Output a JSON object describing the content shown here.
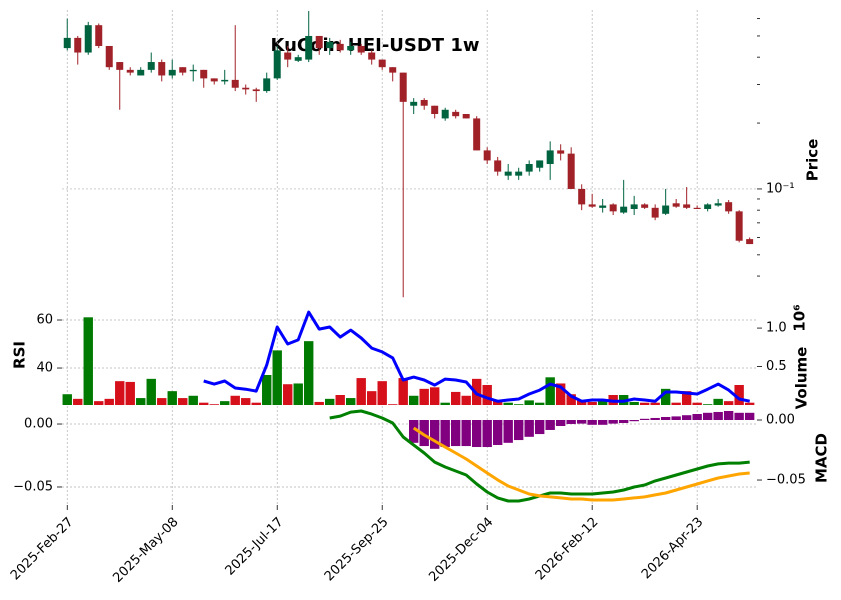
{
  "chart_data": [
    {
      "type": "candlestick",
      "title": "KuCoin HEI-USDT 1w",
      "ylabel": "Price",
      "yscale": "log",
      "grid": true,
      "ylim": [
        0.0295,
        0.657
      ],
      "yticks": [
        {
          "value": 0.1,
          "label": "10⁻¹"
        }
      ],
      "yminorticks": [
        0.04,
        0.05,
        0.06,
        0.07,
        0.08,
        0.09,
        0.2,
        0.3,
        0.4,
        0.5,
        0.6
      ],
      "up_color": "#006340",
      "down_color": "#a02128",
      "open": [
        0.44,
        0.49,
        0.42,
        0.56,
        0.45,
        0.38,
        0.35,
        0.33,
        0.35,
        0.38,
        0.33,
        0.36,
        0.345,
        0.35,
        0.32,
        0.31,
        0.315,
        0.29,
        0.285,
        0.28,
        0.32,
        0.42,
        0.385,
        0.39,
        0.5,
        0.44,
        0.46,
        0.43,
        0.45,
        0.42,
        0.39,
        0.36,
        0.34,
        0.24,
        0.255,
        0.24,
        0.21,
        0.225,
        0.22,
        0.21,
        0.15,
        0.135,
        0.115,
        0.115,
        0.12,
        0.125,
        0.13,
        0.15,
        0.145,
        0.1,
        0.085,
        0.082,
        0.085,
        0.078,
        0.081,
        0.085,
        0.082,
        0.077,
        0.086,
        0.085,
        0.082,
        0.081,
        0.084,
        0.087,
        0.079,
        0.059
      ],
      "high": [
        0.6,
        0.5,
        0.58,
        0.57,
        0.45,
        0.38,
        0.36,
        0.36,
        0.42,
        0.39,
        0.39,
        0.36,
        0.37,
        0.35,
        0.32,
        0.35,
        0.56,
        0.3,
        0.29,
        0.34,
        0.45,
        0.45,
        0.41,
        0.65,
        0.5,
        0.49,
        0.48,
        0.47,
        0.46,
        0.43,
        0.39,
        0.36,
        0.34,
        0.26,
        0.26,
        0.24,
        0.235,
        0.23,
        0.22,
        0.215,
        0.155,
        0.14,
        0.13,
        0.125,
        0.135,
        0.135,
        0.165,
        0.16,
        0.155,
        0.105,
        0.095,
        0.09,
        0.086,
        0.11,
        0.093,
        0.086,
        0.085,
        0.1,
        0.09,
        0.102,
        0.084,
        0.086,
        0.09,
        0.089,
        0.08,
        0.06
      ],
      "low": [
        0.43,
        0.37,
        0.41,
        0.44,
        0.35,
        0.23,
        0.33,
        0.33,
        0.34,
        0.31,
        0.32,
        0.33,
        0.31,
        0.29,
        0.3,
        0.3,
        0.28,
        0.27,
        0.25,
        0.275,
        0.315,
        0.36,
        0.38,
        0.38,
        0.41,
        0.41,
        0.42,
        0.41,
        0.41,
        0.37,
        0.35,
        0.31,
        0.032,
        0.22,
        0.23,
        0.21,
        0.205,
        0.21,
        0.21,
        0.15,
        0.13,
        0.115,
        0.11,
        0.11,
        0.115,
        0.12,
        0.11,
        0.135,
        0.1,
        0.08,
        0.082,
        0.078,
        0.076,
        0.077,
        0.076,
        0.081,
        0.072,
        0.076,
        0.082,
        0.081,
        0.081,
        0.079,
        0.083,
        0.077,
        0.057,
        0.056
      ],
      "close": [
        0.49,
        0.42,
        0.56,
        0.45,
        0.36,
        0.35,
        0.34,
        0.35,
        0.38,
        0.33,
        0.35,
        0.34,
        0.35,
        0.32,
        0.31,
        0.315,
        0.29,
        0.285,
        0.28,
        0.32,
        0.43,
        0.39,
        0.4,
        0.5,
        0.44,
        0.47,
        0.43,
        0.45,
        0.42,
        0.39,
        0.36,
        0.34,
        0.25,
        0.25,
        0.24,
        0.22,
        0.23,
        0.215,
        0.21,
        0.15,
        0.135,
        0.12,
        0.12,
        0.12,
        0.13,
        0.135,
        0.15,
        0.145,
        0.1,
        0.085,
        0.083,
        0.084,
        0.079,
        0.083,
        0.085,
        0.082,
        0.074,
        0.084,
        0.083,
        0.082,
        0.081,
        0.085,
        0.086,
        0.079,
        0.058,
        0.056
      ]
    },
    {
      "type": "combo",
      "ylabel": "RSI",
      "y2label": "Volume",
      "y2_offset_label": "10⁶",
      "grid": true,
      "ylim": [
        24.6,
        66.25
      ],
      "yticks": [
        40,
        60
      ],
      "y2lim": [
        0,
        1.3
      ],
      "y2ticks": [
        {
          "value": 0.5,
          "label": "0.5"
        },
        {
          "value": 1,
          "label": "1.0"
        }
      ],
      "series": [
        {
          "kind": "bar",
          "axis": "y2",
          "up_color": "#007a00",
          "down_color": "#d5101b",
          "values": [
            0.14,
            0.08,
            1.14,
            0.05,
            0.08,
            0.31,
            0.3,
            0.09,
            0.34,
            0.09,
            0.18,
            0.09,
            0.12,
            0.03,
            0.01,
            0.05,
            0.12,
            0.09,
            0.03,
            0.39,
            0.71,
            0.27,
            0.28,
            0.83,
            0.04,
            0.08,
            0.13,
            0.09,
            0.35,
            0.18,
            0.31,
            0.01,
            0.35,
            0.12,
            0.21,
            0.23,
            0.03,
            0.17,
            0.12,
            0.34,
            0.26,
            0.06,
            0.03,
            0.01,
            0.06,
            0.03,
            0.36,
            0.28,
            0.14,
            0.06,
            0.04,
            0.05,
            0.13,
            0.13,
            0.04,
            0.03,
            0.03,
            0.21,
            0.03,
            0.18,
            0.03,
            0.01,
            0.08,
            0.05,
            0.26,
            0.03
          ]
        },
        {
          "kind": "line",
          "color": "#0000ff",
          "values": [
            null,
            null,
            null,
            null,
            null,
            null,
            null,
            null,
            null,
            null,
            null,
            null,
            null,
            34.6,
            33.3,
            34.6,
            31.7,
            31.2,
            30.4,
            41.2,
            57.1,
            50,
            51.7,
            63.3,
            56.2,
            57.1,
            52.9,
            55.8,
            52.5,
            48.3,
            46.7,
            44.2,
            35,
            36.2,
            35,
            32.9,
            35.4,
            35,
            34.2,
            29.2,
            27.5,
            26.2,
            26.7,
            27.1,
            29.2,
            30.8,
            33.3,
            32.1,
            28.3,
            26.2,
            26.7,
            26.7,
            26.2,
            26.2,
            27.1,
            26.7,
            26.2,
            30,
            30,
            29.6,
            29.2,
            31.2,
            33.3,
            30.8,
            27.1,
            26.2
          ]
        }
      ]
    },
    {
      "type": "combo",
      "ylabel": "MACD",
      "grid": true,
      "xlim": [
        -0.5,
        65.7
      ],
      "xticks": [
        {
          "value": 0,
          "label": "2025-Feb-27"
        },
        {
          "value": 10,
          "label": "2025-May-08"
        },
        {
          "value": 20,
          "label": "2025-Jul-17"
        },
        {
          "value": 30,
          "label": "2025-Sep-25"
        },
        {
          "value": 40,
          "label": "2025-Dec-04"
        },
        {
          "value": 50,
          "label": "2026-Feb-12"
        },
        {
          "value": 60,
          "label": "2026-Apr-23"
        }
      ],
      "ylim": [
        -0.0643,
        0.0151
      ],
      "yticks": [
        {
          "value": 0,
          "label": "0.00"
        },
        {
          "value": -0.05,
          "label": "−0.05"
        }
      ],
      "y2lim": [
        -0.0708,
        0.0125
      ],
      "y2ticks": [
        {
          "value": 0,
          "label": "0.00"
        },
        {
          "value": -0.05,
          "label": "−0.05"
        }
      ],
      "series": [
        {
          "kind": "bar",
          "axis": "y2",
          "color": "#800080",
          "values": [
            null,
            null,
            null,
            null,
            null,
            null,
            null,
            null,
            null,
            null,
            null,
            null,
            null,
            null,
            null,
            null,
            null,
            null,
            null,
            null,
            null,
            null,
            null,
            null,
            null,
            null,
            null,
            null,
            null,
            null,
            null,
            null,
            null,
            -0.019,
            -0.0217,
            -0.024,
            -0.0225,
            -0.0217,
            -0.0217,
            -0.0225,
            -0.0225,
            -0.0208,
            -0.019,
            -0.0167,
            -0.014,
            -0.0117,
            -0.0083,
            -0.005,
            -0.0033,
            -0.003,
            -0.004,
            -0.004,
            -0.003,
            -0.0025,
            -0.001,
            0.001,
            0.0017,
            0.0025,
            0.003,
            0.004,
            0.005,
            0.006,
            0.0067,
            0.0075,
            0.006,
            0.006
          ]
        },
        {
          "kind": "line",
          "color": "#008000",
          "values": [
            null,
            null,
            null,
            null,
            null,
            null,
            null,
            null,
            null,
            null,
            null,
            null,
            null,
            null,
            null,
            null,
            null,
            null,
            null,
            null,
            null,
            null,
            null,
            null,
            null,
            0.0048,
            0.0063,
            0.0095,
            0.0103,
            0.0079,
            0.0048,
            0.0008,
            -0.0103,
            -0.0167,
            -0.023,
            -0.0302,
            -0.0341,
            -0.0373,
            -0.0405,
            -0.0476,
            -0.054,
            -0.0587,
            -0.0611,
            -0.0611,
            -0.0595,
            -0.0571,
            -0.0548,
            -0.0548,
            -0.0556,
            -0.0556,
            -0.0556,
            -0.0548,
            -0.054,
            -0.0524,
            -0.05,
            -0.0484,
            -0.0452,
            -0.0429,
            -0.0405,
            -0.0381,
            -0.0357,
            -0.0333,
            -0.0317,
            -0.031,
            -0.031,
            -0.0302
          ]
        },
        {
          "kind": "line",
          "color": "#ffa500",
          "values": [
            null,
            null,
            null,
            null,
            null,
            null,
            null,
            null,
            null,
            null,
            null,
            null,
            null,
            null,
            null,
            null,
            null,
            null,
            null,
            null,
            null,
            null,
            null,
            null,
            null,
            null,
            null,
            null,
            null,
            null,
            null,
            null,
            null,
            -0.0032,
            -0.0087,
            -0.0135,
            -0.0183,
            -0.023,
            -0.0278,
            -0.0333,
            -0.0389,
            -0.0444,
            -0.0492,
            -0.0524,
            -0.0556,
            -0.0571,
            -0.0579,
            -0.0587,
            -0.0595,
            -0.0595,
            -0.0603,
            -0.0603,
            -0.0603,
            -0.0595,
            -0.0587,
            -0.0579,
            -0.0563,
            -0.0548,
            -0.0524,
            -0.05,
            -0.0476,
            -0.0452,
            -0.0429,
            -0.0413,
            -0.0397,
            -0.0389
          ]
        }
      ]
    }
  ]
}
